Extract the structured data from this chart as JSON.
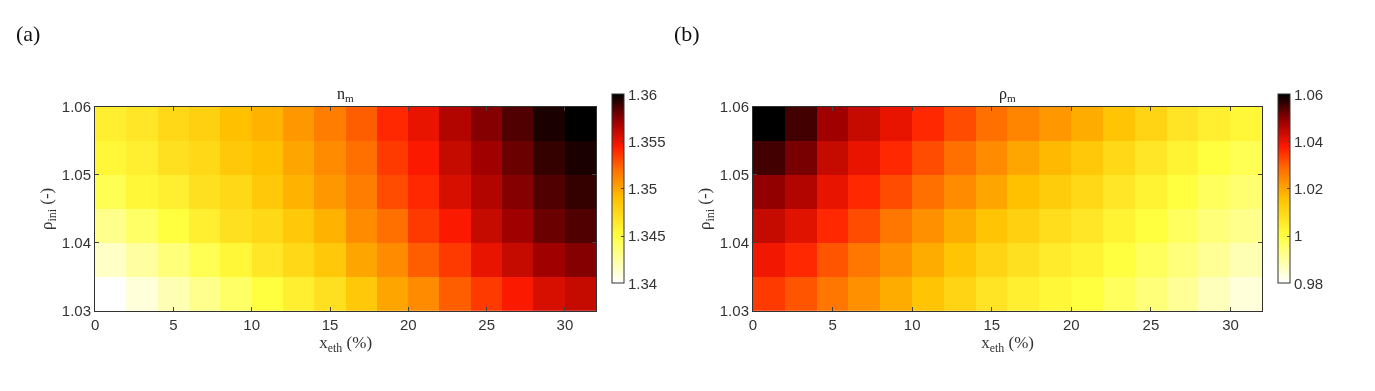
{
  "chart_data": [
    {
      "type": "heatmap",
      "title": "n$_{m}$",
      "xlabel": "x$_{eth}$ (%)",
      "ylabel": "ρ$_{ini}$ (-)",
      "annotations": [
        "(a)"
      ],
      "x": [
        1,
        3,
        5,
        7,
        9,
        11,
        13,
        15,
        17,
        19,
        21,
        23,
        25,
        27,
        29,
        31
      ],
      "y": [
        1.0325,
        1.0375,
        1.0425,
        1.0475,
        1.0525,
        1.0575
      ],
      "cells": [
        [
          1.34,
          1.341,
          1.342,
          1.343,
          1.344,
          1.345,
          1.346,
          1.347,
          1.3485,
          1.35,
          1.351,
          1.3525,
          1.3535,
          1.3545,
          1.3555,
          1.356
        ],
        [
          1.3415,
          1.3425,
          1.3435,
          1.3445,
          1.3455,
          1.3465,
          1.3475,
          1.3485,
          1.35,
          1.351,
          1.3525,
          1.3535,
          1.355,
          1.356,
          1.357,
          1.3575
        ],
        [
          1.343,
          1.344,
          1.345,
          1.346,
          1.347,
          1.3475,
          1.3485,
          1.3495,
          1.351,
          1.352,
          1.3535,
          1.3545,
          1.356,
          1.357,
          1.358,
          1.3585
        ],
        [
          1.3445,
          1.3455,
          1.346,
          1.347,
          1.3475,
          1.3485,
          1.3495,
          1.3505,
          1.3515,
          1.353,
          1.354,
          1.3555,
          1.3565,
          1.3575,
          1.3585,
          1.359
        ],
        [
          1.3455,
          1.346,
          1.347,
          1.3475,
          1.3485,
          1.349,
          1.35,
          1.351,
          1.352,
          1.3535,
          1.3545,
          1.356,
          1.357,
          1.358,
          1.359,
          1.3595
        ],
        [
          1.346,
          1.3465,
          1.3475,
          1.348,
          1.349,
          1.3495,
          1.3505,
          1.3515,
          1.3525,
          1.354,
          1.355,
          1.3565,
          1.3575,
          1.3585,
          1.3595,
          1.36
        ]
      ],
      "xlim": [
        0,
        32
      ],
      "ylim": [
        1.03,
        1.06
      ],
      "xticks": [
        0,
        5,
        10,
        15,
        20,
        25,
        30
      ],
      "yticks": [
        1.03,
        1.04,
        1.05,
        1.06
      ],
      "clim": [
        1.34,
        1.36
      ],
      "cticks": [
        1.34,
        1.345,
        1.35,
        1.355,
        1.36
      ]
    },
    {
      "type": "heatmap",
      "title": "ρ$_{m}$",
      "xlabel": "x$_{eth}$ (%)",
      "ylabel": "ρ$_{ini}$ (-)",
      "annotations": [
        "(b)"
      ],
      "x": [
        1,
        3,
        5,
        7,
        9,
        11,
        13,
        15,
        17,
        19,
        21,
        23,
        25,
        27,
        29,
        31
      ],
      "y": [
        1.0325,
        1.0375,
        1.0425,
        1.0475,
        1.0525,
        1.0575
      ],
      "cells": [
        [
          1.034,
          1.031,
          1.027,
          1.023,
          1.019,
          1.015,
          1.011,
          1.007,
          1.004,
          1.002,
          1.0,
          0.997,
          0.994,
          0.991,
          0.987,
          0.984
        ],
        [
          1.039,
          1.036,
          1.031,
          1.027,
          1.023,
          1.019,
          1.015,
          1.011,
          1.008,
          1.005,
          1.003,
          1.0,
          0.997,
          0.994,
          0.991,
          0.988
        ],
        [
          1.044,
          1.041,
          1.036,
          1.032,
          1.027,
          1.023,
          1.019,
          1.015,
          1.012,
          1.009,
          1.006,
          1.003,
          1.0,
          0.997,
          0.994,
          0.992
        ],
        [
          1.049,
          1.046,
          1.04,
          1.036,
          1.032,
          1.028,
          1.024,
          1.02,
          1.016,
          1.013,
          1.01,
          1.006,
          1.003,
          1.0,
          0.997,
          0.995
        ],
        [
          1.055,
          1.051,
          1.044,
          1.04,
          1.036,
          1.032,
          1.028,
          1.024,
          1.02,
          1.017,
          1.014,
          1.01,
          1.006,
          1.003,
          1.0,
          0.998
        ],
        [
          1.06,
          1.055,
          1.048,
          1.044,
          1.04,
          1.036,
          1.032,
          1.028,
          1.025,
          1.022,
          1.019,
          1.015,
          1.011,
          1.007,
          1.004,
          1.002
        ]
      ],
      "xlim": [
        0,
        32
      ],
      "ylim": [
        1.03,
        1.06
      ],
      "xticks": [
        0,
        5,
        10,
        15,
        20,
        25,
        30
      ],
      "yticks": [
        1.03,
        1.04,
        1.05,
        1.06
      ],
      "clim": [
        0.98,
        1.06
      ],
      "cticks": [
        0.98,
        1,
        1.02,
        1.04,
        1.06
      ]
    }
  ]
}
